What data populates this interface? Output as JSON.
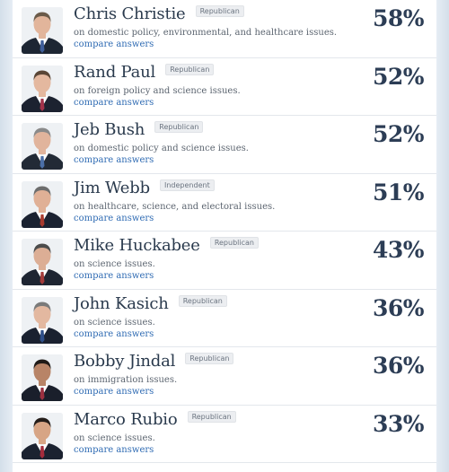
{
  "candidates": [
    {
      "name": "Chris Christie",
      "party": "Republican",
      "issues": "on domestic policy, environmental, and healthcare issues.",
      "compare": "compare answers",
      "score": "58%",
      "suit": "#1d2633",
      "tie": "#3f5e9a",
      "hair": "#6b5b4a",
      "skin": "#e2b59b"
    },
    {
      "name": "Rand Paul",
      "party": "Republican",
      "issues": "on foreign policy and science issues.",
      "compare": "compare answers",
      "score": "52%",
      "suit": "#1c2230",
      "tie": "#a2324a",
      "hair": "#5a4636",
      "skin": "#e4b89f"
    },
    {
      "name": "Jeb Bush",
      "party": "Republican",
      "issues": "on domestic policy and science issues.",
      "compare": "compare answers",
      "score": "52%",
      "suit": "#222a36",
      "tie": "#4b6fa8",
      "hair": "#8a8a8a",
      "skin": "#e1b49c"
    },
    {
      "name": "Jim Webb",
      "party": "Independent",
      "issues": "on healthcare, science, and electoral issues.",
      "compare": "compare answers",
      "score": "51%",
      "suit": "#1b2231",
      "tie": "#a83a2e",
      "hair": "#6d6d6d",
      "skin": "#e0b096"
    },
    {
      "name": "Mike Huckabee",
      "party": "Republican",
      "issues": "on science issues.",
      "compare": "compare answers",
      "score": "43%",
      "suit": "#1e2532",
      "tie": "#a33a3a",
      "hair": "#4c4c4c",
      "skin": "#dcae95"
    },
    {
      "name": "John Kasich",
      "party": "Republican",
      "issues": "on science issues.",
      "compare": "compare answers",
      "score": "36%",
      "suit": "#1a2130",
      "tie": "#2f4f8a",
      "hair": "#7a7a7a",
      "skin": "#e3b8a0"
    },
    {
      "name": "Bobby Jindal",
      "party": "Republican",
      "issues": "on immigration issues.",
      "compare": "compare answers",
      "score": "36%",
      "suit": "#1a1f2b",
      "tie": "#9c3040",
      "hair": "#1f1a17",
      "skin": "#b88467"
    },
    {
      "name": "Marco Rubio",
      "party": "Republican",
      "issues": "on science issues.",
      "compare": "compare answers",
      "score": "33%",
      "suit": "#1b2230",
      "tie": "#a42c3c",
      "hair": "#241d19",
      "skin": "#d7a585"
    }
  ]
}
